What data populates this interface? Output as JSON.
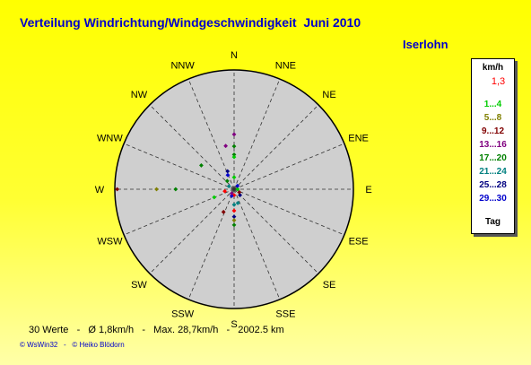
{
  "title": "Verteilung Windrichtung/Windgeschwindigkeit  Juni 2010",
  "location": "Iserlohn",
  "stats": "30 Werte   -   Ø 1,8km/h   -   Max. 28,7km/h   -   2002.5 km",
  "copyright": "© WsWin32   -   © Heiko Blödorn",
  "legend": {
    "header": "km/h",
    "entries": [
      {
        "label": "1,3",
        "color": "#ff0000"
      },
      {
        "label": "1...4",
        "color": "#00cc00"
      },
      {
        "label": "5...8",
        "color": "#808000"
      },
      {
        "label": "9...12",
        "color": "#800000"
      },
      {
        "label": "13...16",
        "color": "#800080"
      },
      {
        "label": "17...20",
        "color": "#008000"
      },
      {
        "label": "21...24",
        "color": "#008080"
      },
      {
        "label": "25...28",
        "color": "#000080"
      },
      {
        "label": "29...30",
        "color": "#0000cc"
      }
    ],
    "footer": "Tag"
  },
  "chart_data": {
    "type": "scatter",
    "subtype": "polar-wind-rose",
    "directions": [
      "N",
      "NNE",
      "NE",
      "ENE",
      "E",
      "ESE",
      "SE",
      "SSE",
      "S",
      "SSW",
      "SW",
      "WSW",
      "W",
      "WNW",
      "NW",
      "NNW"
    ],
    "radius_max": 1.0,
    "grid": true,
    "points": [
      {
        "dir": 0,
        "r": 0.46,
        "color": "#800080"
      },
      {
        "dir": 0,
        "r": 0.36,
        "color": "#008000"
      },
      {
        "dir": 0,
        "r": 0.29,
        "color": "#008000"
      },
      {
        "dir": 0,
        "r": 0.27,
        "color": "#00cc00"
      },
      {
        "dir": 349,
        "r": 0.37,
        "color": "#800080"
      },
      {
        "dir": 340,
        "r": 0.16,
        "color": "#000080"
      },
      {
        "dir": 336,
        "r": 0.13,
        "color": "#0000cc"
      },
      {
        "dir": 320,
        "r": 0.09,
        "color": "#008000"
      },
      {
        "dir": 306,
        "r": 0.34,
        "color": "#008000"
      },
      {
        "dir": 270,
        "r": 0.98,
        "color": "#800000"
      },
      {
        "dir": 270,
        "r": 0.65,
        "color": "#808000"
      },
      {
        "dir": 270,
        "r": 0.49,
        "color": "#008000"
      },
      {
        "dir": 248,
        "r": 0.18,
        "color": "#00cc00"
      },
      {
        "dir": 258,
        "r": 0.08,
        "color": "#ff0000"
      },
      {
        "dir": 135,
        "r": 0.07,
        "color": "#000080"
      },
      {
        "dir": 120,
        "r": 0.05,
        "color": "#800000"
      },
      {
        "dir": 180,
        "r": 0.05,
        "color": "#ff0000"
      },
      {
        "dir": 200,
        "r": 0.06,
        "color": "#0000cc"
      },
      {
        "dir": 180,
        "r": 0.13,
        "color": "#008080"
      },
      {
        "dir": 180,
        "r": 0.18,
        "color": "#ff0000"
      },
      {
        "dir": 205,
        "r": 0.21,
        "color": "#800000"
      },
      {
        "dir": 180,
        "r": 0.23,
        "color": "#000080"
      },
      {
        "dir": 180,
        "r": 0.26,
        "color": "#808000"
      },
      {
        "dir": 180,
        "r": 0.3,
        "color": "#008000"
      },
      {
        "dir": 165,
        "r": 0.12,
        "color": "#008080"
      },
      {
        "dir": 90,
        "r": 0.03,
        "color": "#00cc00"
      },
      {
        "dir": 45,
        "r": 0.04,
        "color": "#0000cc"
      },
      {
        "dir": 300,
        "r": 0.05,
        "color": "#008080"
      },
      {
        "dir": 0,
        "r": 0.1,
        "color": "#00cc00"
      },
      {
        "dir": 210,
        "r": 0.04,
        "color": "#800080"
      }
    ]
  }
}
